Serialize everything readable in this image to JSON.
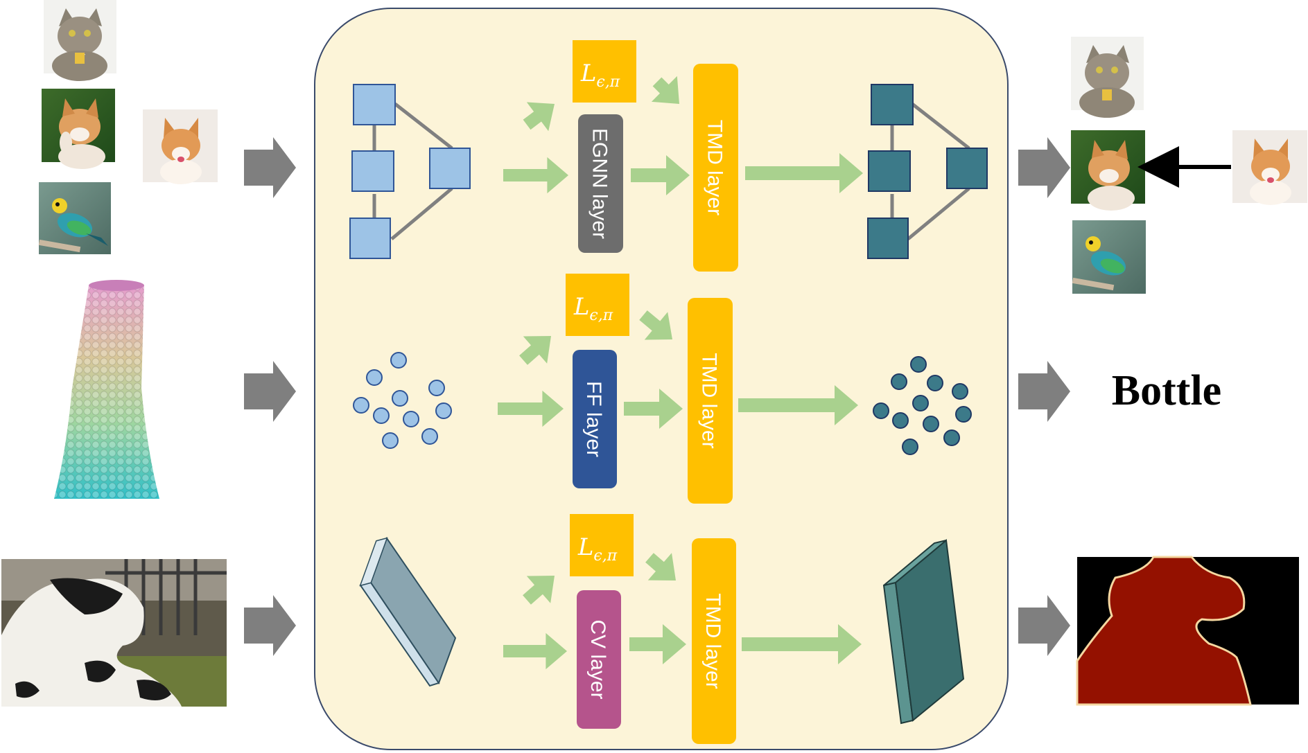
{
  "panel": {
    "background": "#fcf4d8",
    "border": "#3a4a6b"
  },
  "colors": {
    "gray_arrow": "#7f7f7f",
    "green_arrow": "#a9d18e",
    "tmd": "#ffc000",
    "loss_box": "#ffc000",
    "egnn": "#6d6d6d",
    "ff": "#2f5597",
    "cv": "#b5548c",
    "node_light": "#9dc3e6",
    "node_dark": "#3c7a89",
    "cow_mask": "#941100"
  },
  "rows": [
    {
      "id": "graph",
      "input": "images",
      "layer_label": "EGNN layer",
      "tmd_label": "TMD layer",
      "loss_label": "L",
      "loss_sub": "ϵ,π",
      "output": "image graph"
    },
    {
      "id": "points",
      "input": "point cloud",
      "layer_label": "FF layer",
      "tmd_label": "TMD layer",
      "loss_label": "L",
      "loss_sub": "ϵ,π",
      "output": "Bottle"
    },
    {
      "id": "vision",
      "input": "cow photo",
      "layer_label": "CV layer",
      "tmd_label": "TMD layer",
      "loss_label": "L",
      "loss_sub": "ϵ,π",
      "output": "segmentation mask"
    }
  ],
  "outputs": {
    "classification_label": "Bottle"
  },
  "icons": [
    "cat-image",
    "corgi-waving-image",
    "corgi-image",
    "bird-image",
    "vase-pointcloud-image",
    "cow-photo-image",
    "segmentation-mask-image"
  ]
}
